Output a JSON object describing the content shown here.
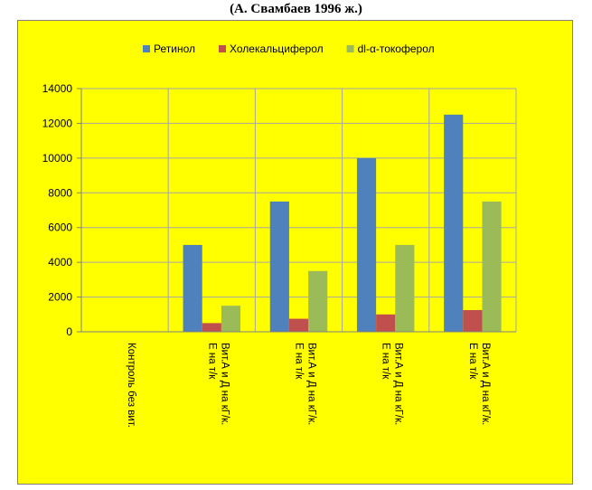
{
  "header": {
    "text": "(А. Свамбаев 1996 ж.)"
  },
  "chart_data": {
    "type": "bar",
    "ylim": [
      0,
      14000
    ],
    "yticks": [
      0,
      2000,
      4000,
      6000,
      8000,
      10000,
      12000,
      14000
    ],
    "grid": true,
    "legend_position": "top",
    "categories": [
      [
        "Контроль без вит."
      ],
      [
        "Вит.А и Д на кГ/к.",
        "Е на т/к"
      ],
      [
        "Вит.А и Д на кГ/к.",
        "Е на т/к"
      ],
      [
        "Вит.А и Д на кГ/к.",
        "Е на т/к"
      ],
      [
        "Вит.А и Д на кГ/к.",
        "Е на т/к"
      ]
    ],
    "series": [
      {
        "name": "Ретинол",
        "color": "#4f81bd",
        "values": [
          0,
          5000,
          7500,
          10000,
          12500
        ]
      },
      {
        "name": "Холекальциферол",
        "color": "#c0504d",
        "values": [
          0,
          500,
          750,
          1000,
          1250
        ]
      },
      {
        "name": "dl-α-токоферол",
        "color": "#9bbb59",
        "values": [
          0,
          1500,
          3500,
          5000,
          7500
        ]
      }
    ]
  }
}
